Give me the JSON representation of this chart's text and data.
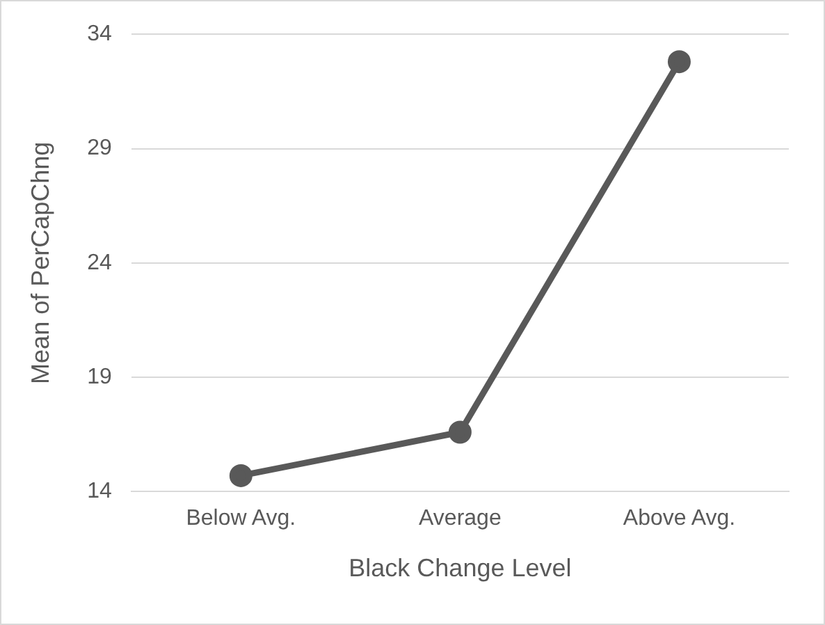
{
  "chart_data": {
    "type": "line",
    "xlabel": "Black Change Level",
    "ylabel": "Mean of PerCapChng",
    "categories": [
      "Below Avg.",
      "Average",
      "Above Avg."
    ],
    "series": [
      {
        "color": "#595959",
        "values": [
          14.7,
          16.6,
          32.8
        ]
      }
    ],
    "ylim": [
      14,
      34
    ],
    "yticks": [
      14,
      19,
      24,
      29,
      34
    ],
    "grid": "y",
    "legend": false,
    "marker": "circle",
    "line_style": "solid"
  }
}
